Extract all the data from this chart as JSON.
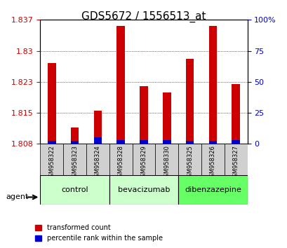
{
  "title": "GDS5672 / 1556513_at",
  "samples": [
    "GSM958322",
    "GSM958323",
    "GSM958324",
    "GSM958328",
    "GSM958329",
    "GSM958330",
    "GSM958325",
    "GSM958326",
    "GSM958327"
  ],
  "transformed_count": [
    1.827,
    1.8115,
    1.8155,
    1.836,
    1.8215,
    1.82,
    1.828,
    1.836,
    1.822
  ],
  "percentile_rank": [
    2.5,
    2.5,
    5.0,
    3.0,
    3.0,
    3.0,
    2.5,
    2.5,
    3.0
  ],
  "groups": [
    {
      "label": "control",
      "indices": [
        0,
        1,
        2
      ],
      "color": "#ccffcc"
    },
    {
      "label": "bevacizumab",
      "indices": [
        3,
        4,
        5
      ],
      "color": "#ccffcc"
    },
    {
      "label": "dibenzazepine",
      "indices": [
        6,
        7,
        8
      ],
      "color": "#66ff66"
    }
  ],
  "ylim_left": [
    1.8075,
    1.8375
  ],
  "ylim_right": [
    0,
    100
  ],
  "yticks_left": [
    1.8075,
    1.815,
    1.8225,
    1.83,
    1.8375
  ],
  "yticks_right": [
    0,
    25,
    50,
    75,
    100
  ],
  "bar_color_red": "#cc0000",
  "bar_color_blue": "#0000cc",
  "bar_width": 0.35,
  "bg_plot": "#ffffff",
  "bg_tick_area": "#cccccc",
  "grid_color": "#000000",
  "title_fontsize": 11,
  "tick_label_fontsize": 7.5,
  "axis_label_color_left": "#cc0000",
  "axis_label_color_right": "#0000cc"
}
